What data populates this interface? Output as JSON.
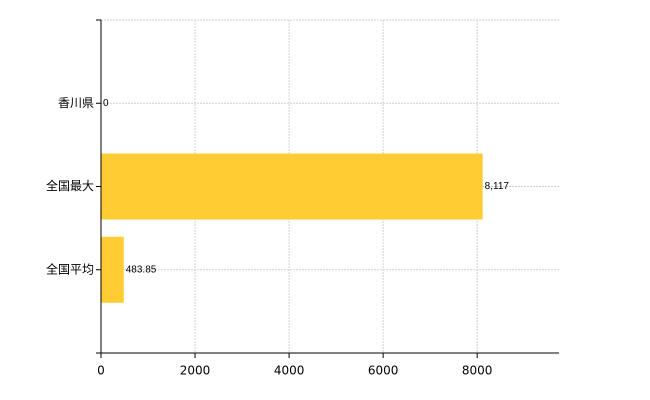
{
  "chart_data": {
    "type": "bar",
    "orientation": "horizontal",
    "categories": [
      "香川県",
      "全国最大",
      "全国平均"
    ],
    "values": [
      0,
      8117,
      483.85
    ],
    "value_labels": [
      "0",
      "8,117",
      "483.85"
    ],
    "color": "#ffcc33",
    "xlim": [
      0,
      9740
    ],
    "xticks": [
      0,
      2000,
      4000,
      6000,
      8000
    ],
    "grid": true
  }
}
